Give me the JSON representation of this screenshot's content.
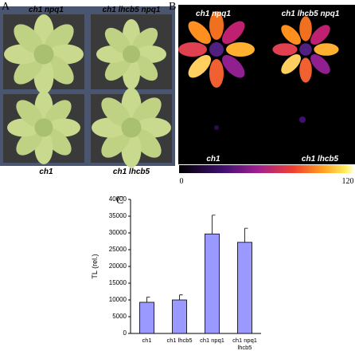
{
  "panels": {
    "a": {
      "label": "A",
      "labels": [
        "ch1 npq1",
        "ch1 lhcb5 npq1",
        "ch1",
        "ch1 lhcb5"
      ]
    },
    "b": {
      "label": "B",
      "labels": [
        "ch1 npq1",
        "ch1 lhcb5 npq1",
        "ch1",
        "ch1 lhcb5"
      ],
      "colorbar": {
        "min": 0,
        "max": 120
      }
    },
    "c": {
      "label": "C"
    }
  },
  "chart_data": {
    "type": "bar",
    "ylabel": "TL (rel.)",
    "categories": [
      "ch1",
      "ch1 lhcb5",
      "ch1 npq1",
      "ch1 npq1 lhcb5"
    ],
    "values": [
      9300,
      10000,
      29700,
      27200
    ],
    "errors": [
      1600,
      1500,
      5600,
      4200
    ],
    "color": "#9999ff",
    "ylim": [
      0,
      40000
    ],
    "yticks": [
      0,
      5000,
      10000,
      15000,
      20000,
      25000,
      30000,
      35000,
      40000
    ]
  }
}
